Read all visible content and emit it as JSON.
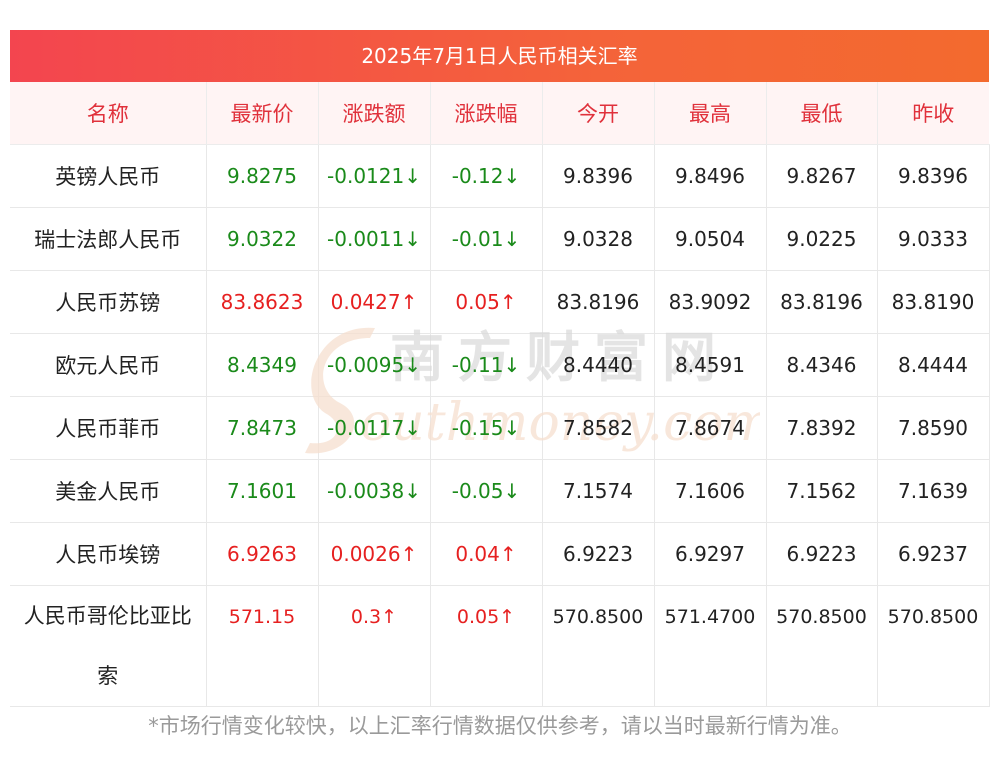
{
  "title": "2025年7月1日人民币相关汇率",
  "columns": [
    "名称",
    "最新价",
    "涨跌额",
    "涨跌幅",
    "今开",
    "最高",
    "最低",
    "昨收"
  ],
  "rows": [
    {
      "name": "英镑人民币",
      "latest": "9.8275",
      "change": "-0.0121↓",
      "pct": "-0.12↓",
      "open": "9.8396",
      "high": "9.8496",
      "low": "9.8267",
      "prev": "9.8396",
      "dir": "down"
    },
    {
      "name": "瑞士法郎人民币",
      "latest": "9.0322",
      "change": "-0.0011↓",
      "pct": "-0.01↓",
      "open": "9.0328",
      "high": "9.0504",
      "low": "9.0225",
      "prev": "9.0333",
      "dir": "down"
    },
    {
      "name": "人民币苏镑",
      "latest": "83.8623",
      "change": "0.0427↑",
      "pct": "0.05↑",
      "open": "83.8196",
      "high": "83.9092",
      "low": "83.8196",
      "prev": "83.8190",
      "dir": "up"
    },
    {
      "name": "欧元人民币",
      "latest": "8.4349",
      "change": "-0.0095↓",
      "pct": "-0.11↓",
      "open": "8.4440",
      "high": "8.4591",
      "low": "8.4346",
      "prev": "8.4444",
      "dir": "down"
    },
    {
      "name": "人民币菲币",
      "latest": "7.8473",
      "change": "-0.0117↓",
      "pct": "-0.15↓",
      "open": "7.8582",
      "high": "7.8674",
      "low": "7.8392",
      "prev": "7.8590",
      "dir": "down"
    },
    {
      "name": "美金人民币",
      "latest": "7.1601",
      "change": "-0.0038↓",
      "pct": "-0.05↓",
      "open": "7.1574",
      "high": "7.1606",
      "low": "7.1562",
      "prev": "7.1639",
      "dir": "down"
    },
    {
      "name": "人民币埃镑",
      "latest": "6.9263",
      "change": "0.0026↑",
      "pct": "0.04↑",
      "open": "6.9223",
      "high": "6.9297",
      "low": "6.9223",
      "prev": "6.9237",
      "dir": "up"
    },
    {
      "name": "人民币哥伦比亚比索",
      "latest": "571.15",
      "change": "0.3↑",
      "pct": "0.05↑",
      "open": "570.8500",
      "high": "571.4700",
      "low": "570.8500",
      "prev": "570.8500",
      "dir": "up"
    }
  ],
  "watermark": {
    "cn": "南方财富网",
    "en": "outhmoney.com"
  },
  "footer": "*市场行情变化较快，以上汇率行情数据仅供参考，请以当时最新行情为准。",
  "colors": {
    "up": "#e62020",
    "down": "#1a8a1a",
    "header_text": "#e0313b",
    "title_bg": "#f3454f"
  }
}
